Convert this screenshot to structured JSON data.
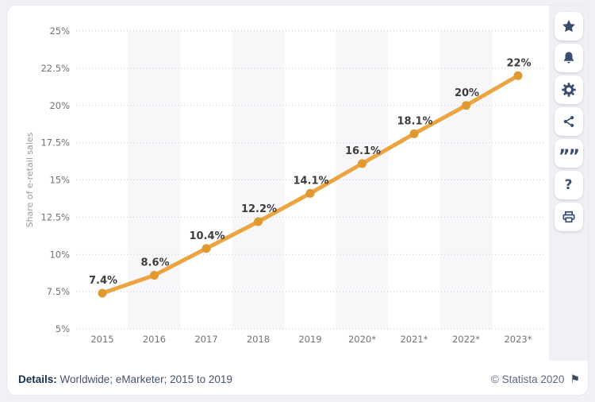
{
  "chart_data": {
    "type": "line",
    "title": "",
    "ylabel": "Share of e-retail sales",
    "categories": [
      "2015",
      "2016",
      "2017",
      "2018",
      "2019",
      "2020*",
      "2021*",
      "2022*",
      "2023*"
    ],
    "values": [
      7.4,
      8.6,
      10.4,
      12.2,
      14.1,
      16.1,
      18.1,
      20,
      22
    ],
    "point_labels": [
      "7.4%",
      "8.6%",
      "10.4%",
      "12.2%",
      "14.1%",
      "16.1%",
      "18.1%",
      "20%",
      "22%"
    ],
    "y_ticks": [
      "25%",
      "22.5%",
      "20%",
      "17.5%",
      "15%",
      "12.5%",
      "10%",
      "7.5%",
      "5%"
    ],
    "ylim": [
      5,
      25
    ],
    "ytick_step": 2.5,
    "xlabel": "",
    "grid": "horizontal-dotted",
    "legend": "none",
    "banded_categories": [
      "2016",
      "2018",
      "2020*",
      "2022*"
    ],
    "colors": {
      "line": "#eba43f",
      "marker": "#e0992f",
      "band": "#f7f7f9",
      "gridline": "#c9c9ce",
      "tick_text": "#737373",
      "axis_title_text": "#9a9a9a",
      "point_label_text": "#3d3d3d"
    }
  },
  "toolbar": {
    "icon_color": "#3a4d6e",
    "buttons": [
      {
        "name": "favorite",
        "icon": "star-icon"
      },
      {
        "name": "alerts",
        "icon": "bell-icon"
      },
      {
        "name": "settings",
        "icon": "gear-icon"
      },
      {
        "name": "share",
        "icon": "share-icon"
      },
      {
        "name": "cite",
        "icon": "quote-icon"
      },
      {
        "name": "help",
        "icon": "question-icon"
      },
      {
        "name": "print",
        "icon": "printer-icon"
      }
    ],
    "glyphs": {
      "quote": "””",
      "question": "?"
    }
  },
  "footer": {
    "details_label": "Details:",
    "details_text": " Worldwide; eMarketer; 2015 to 2019",
    "copyright": "© Statista 2020",
    "flag_glyph": "⚑"
  }
}
